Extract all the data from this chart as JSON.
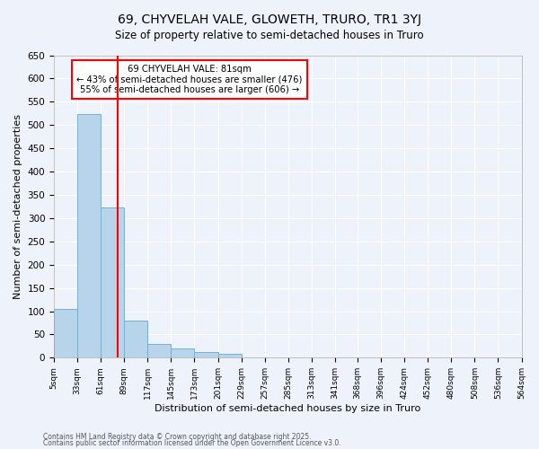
{
  "title": "69, CHYVELAH VALE, GLOWETH, TRURO, TR1 3YJ",
  "subtitle": "Size of property relative to semi-detached houses in Truro",
  "xlabel": "Distribution of semi-detached houses by size in Truro",
  "ylabel": "Number of semi-detached properties",
  "bins": [
    5,
    33,
    61,
    89,
    117,
    145,
    173,
    201,
    229,
    257,
    285,
    313,
    341,
    368,
    396,
    424,
    452,
    480,
    508,
    536,
    564
  ],
  "counts": [
    104,
    524,
    322,
    80,
    30,
    20,
    12,
    8,
    0,
    0,
    0,
    0,
    0,
    0,
    0,
    0,
    0,
    0,
    0,
    0
  ],
  "bar_color": "#b8d4ea",
  "bar_edge_color": "#7aaed0",
  "vline_x": 81,
  "vline_color": "red",
  "annotation_title": "69 CHYVELAH VALE: 81sqm",
  "annotation_line1": "← 43% of semi-detached houses are smaller (476)",
  "annotation_line2": "55% of semi-detached houses are larger (606) →",
  "annotation_box_color": "white",
  "annotation_box_edge": "red",
  "ylim": [
    0,
    650
  ],
  "yticks": [
    0,
    50,
    100,
    150,
    200,
    250,
    300,
    350,
    400,
    450,
    500,
    550,
    600,
    650
  ],
  "footer1": "Contains HM Land Registry data © Crown copyright and database right 2025.",
  "footer2": "Contains public sector information licensed under the Open Government Licence v3.0.",
  "bg_color": "#eef2fb"
}
